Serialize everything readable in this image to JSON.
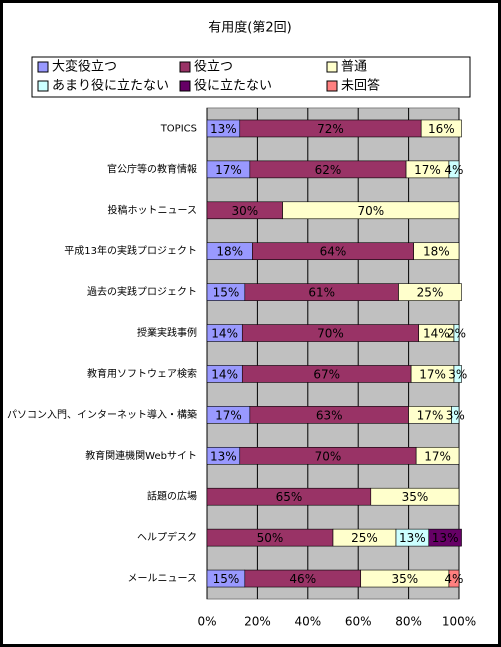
{
  "chart_data": {
    "type": "stacked_bar_horizontal",
    "title": "有用度(第2回)",
    "categories": [
      "TOPICS",
      "官公庁等の教育情報",
      "投稿ホットニュース",
      "平成13年の実践プロジェクト",
      "過去の実践プロジェクト",
      "授業実践事例",
      "教育用ソフトウェア検索",
      "パソコン入門、インターネット導入・構築",
      "教育関連機関Webサイト",
      "話題の広場",
      "ヘルプデスク",
      "メールニュース"
    ],
    "series": [
      {
        "name": "大変役立つ",
        "color": "#9999ff",
        "values": [
          13,
          17,
          null,
          18,
          15,
          14,
          14,
          17,
          13,
          null,
          null,
          15
        ],
        "value_labels": [
          "13%",
          "17%",
          null,
          "18%",
          "15%",
          "14%",
          "14%",
          "17%",
          "13%",
          null,
          null,
          "15%"
        ]
      },
      {
        "name": "役立つ",
        "color": "#993366",
        "values": [
          72,
          62,
          30,
          64,
          61,
          70,
          67,
          63,
          70,
          65,
          50,
          46
        ],
        "value_labels": [
          "72%",
          "62%",
          "30%",
          "64%",
          "61%",
          "70%",
          "67%",
          "63%",
          "70%",
          "65%",
          "50%",
          "46%"
        ]
      },
      {
        "name": "普通",
        "color": "#ffffcc",
        "values": [
          16,
          17,
          70,
          18,
          25,
          14,
          17,
          17,
          17,
          35,
          25,
          35
        ],
        "value_labels": [
          "16%",
          "17%",
          "70%",
          "18%",
          "25%",
          "14%",
          "17%",
          "17%",
          "17%",
          "35%",
          "25%",
          "35%"
        ]
      },
      {
        "name": "あまり役に立たない",
        "color": "#ccffff",
        "values": [
          null,
          4,
          null,
          null,
          null,
          2,
          3,
          3,
          null,
          null,
          13,
          null
        ],
        "value_labels": [
          null,
          "4%",
          null,
          null,
          null,
          "2%",
          "3%",
          "3%",
          null,
          null,
          "13%",
          null
        ]
      },
      {
        "name": "役に立たない",
        "color": "#660066",
        "values": [
          null,
          null,
          null,
          null,
          null,
          null,
          null,
          null,
          null,
          null,
          13,
          null
        ],
        "value_labels": [
          null,
          null,
          null,
          null,
          null,
          null,
          null,
          null,
          null,
          null,
          "13%",
          null
        ]
      },
      {
        "name": "未回答",
        "color": "#ff8080",
        "values": [
          null,
          null,
          null,
          null,
          null,
          null,
          null,
          null,
          null,
          null,
          null,
          4
        ],
        "value_labels": [
          null,
          null,
          null,
          null,
          null,
          null,
          null,
          null,
          null,
          null,
          null,
          "4%"
        ]
      }
    ],
    "xlim": [
      0,
      100
    ],
    "xticks": [
      {
        "value": 0,
        "label": "0%"
      },
      {
        "value": 20,
        "label": "20%"
      },
      {
        "value": 40,
        "label": "40%"
      },
      {
        "value": 60,
        "label": "60%"
      },
      {
        "value": 80,
        "label": "80%"
      },
      {
        "value": 100,
        "label": "100%"
      }
    ],
    "grid": true
  }
}
